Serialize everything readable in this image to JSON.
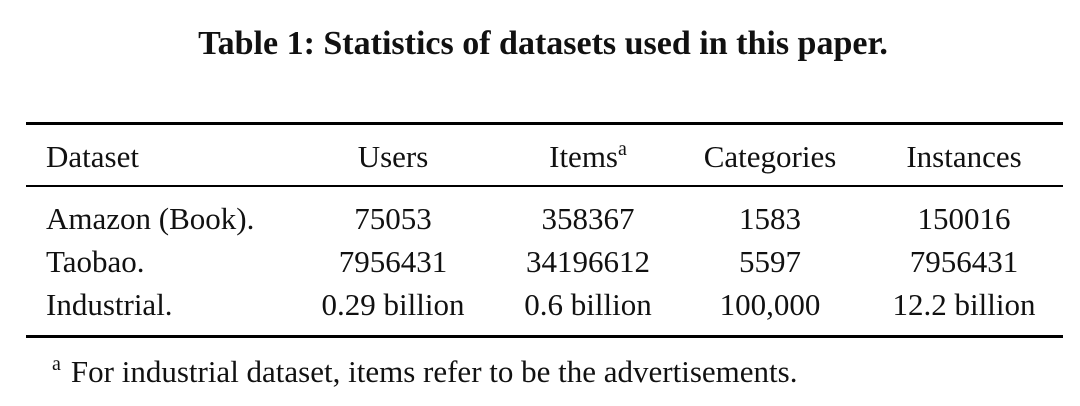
{
  "caption": "Table 1: Statistics of datasets used in this paper.",
  "table": {
    "headers": {
      "dataset": "Dataset",
      "users": "Users",
      "items": "Items",
      "items_sup": "a",
      "categories": "Categories",
      "instances": "Instances"
    },
    "rows": [
      {
        "dataset": "Amazon (Book).",
        "users": "75053",
        "items": "358367",
        "categories": "1583",
        "instances": "150016"
      },
      {
        "dataset": "Taobao.",
        "users": "7956431",
        "items": "34196612",
        "categories": "5597",
        "instances": "7956431"
      },
      {
        "dataset": "Industrial.",
        "users": "0.29 billion",
        "items": "0.6 billion",
        "categories": "100,000",
        "instances": "12.2 billion"
      }
    ]
  },
  "footnote": {
    "mark": "a",
    "text": "For industrial dataset, items refer to be the advertisements."
  }
}
